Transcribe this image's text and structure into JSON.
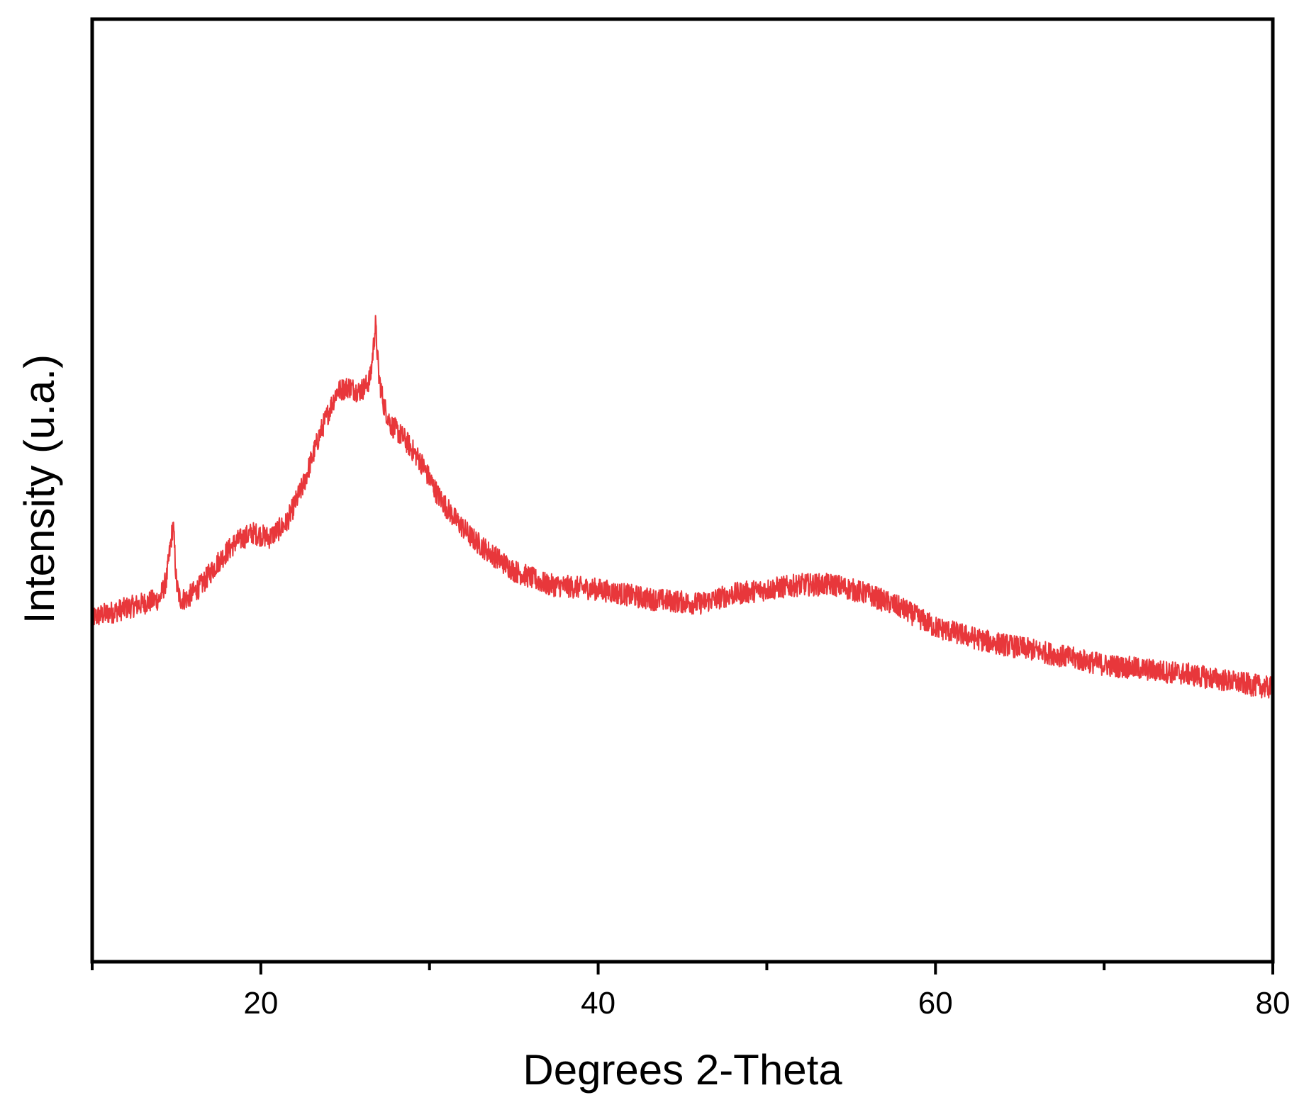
{
  "chart_data": {
    "type": "line",
    "title": "",
    "xlabel": "Degrees 2-Theta",
    "ylabel": "Intensity (u.a.)",
    "xlim": [
      10,
      80
    ],
    "ylim": [
      0,
      100
    ],
    "x_ticks": [
      20,
      40,
      60,
      80
    ],
    "x_minor_ticks": [
      10,
      30,
      50,
      70
    ],
    "y_tick_labels_shown": false,
    "grid": false,
    "legend": "none",
    "series": [
      {
        "color": "#e8373b",
        "noise_amplitude": 1.2,
        "x": [
          10,
          12,
          13,
          14,
          14.4,
          14.8,
          15.0,
          15.2,
          15.6,
          16.5,
          17.5,
          18.5,
          19.5,
          20.5,
          21.5,
          22.5,
          23.5,
          24.5,
          25.2,
          25.8,
          26.2,
          26.5,
          26.8,
          27.0,
          27.3,
          27.7,
          28.5,
          29.5,
          30.5,
          31.5,
          32.5,
          33.5,
          35,
          37,
          40,
          43,
          46,
          48,
          50,
          52,
          54,
          56,
          58,
          60,
          63,
          66,
          70,
          75,
          80
        ],
        "y": [
          36.5,
          37.5,
          38,
          38.5,
          40.5,
          46.5,
          40,
          38.5,
          38.5,
          40,
          42.5,
          44.5,
          45.5,
          45,
          46.5,
          50.5,
          56,
          60.5,
          61,
          60.5,
          61,
          62,
          67.5,
          62,
          59,
          57,
          55.5,
          53,
          49.5,
          47,
          45,
          43.5,
          41.5,
          40,
          39.5,
          38.5,
          38,
          39,
          39.5,
          40,
          40,
          39,
          37.5,
          35.5,
          34,
          33,
          31.5,
          30.5,
          29
        ]
      }
    ]
  }
}
